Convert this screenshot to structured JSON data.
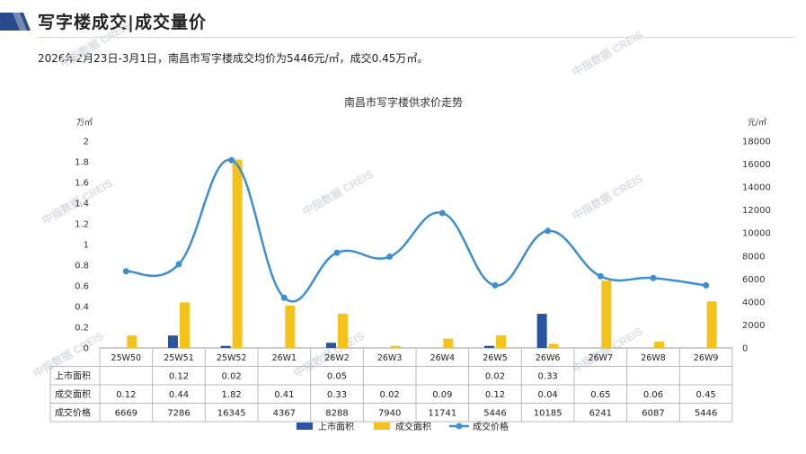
{
  "header": {
    "title": "写字楼成交|成交量价",
    "summary": "2026年2月23日-3月1日，南昌市写字楼成交均价为5446元/㎡，成交0.45万㎡。",
    "accent_color": "#2b4a8b"
  },
  "watermark": "中指数据 CREIS",
  "chart_data": {
    "type": "bar",
    "title": "南昌市写字楼供求价走势",
    "y_left_unit": "万㎡",
    "y_right_unit": "元/㎡",
    "ylim_left": [
      0,
      2
    ],
    "ylim_right": [
      0,
      18000
    ],
    "y_left_ticks": [
      "0",
      "0.2",
      "0.4",
      "0.6",
      "0.8",
      "1",
      "1.2",
      "1.4",
      "1.6",
      "1.8",
      "2"
    ],
    "y_right_ticks": [
      "0",
      "2000",
      "4000",
      "6000",
      "8000",
      "10000",
      "12000",
      "14000",
      "16000",
      "18000"
    ],
    "categories": [
      "25W50",
      "25W51",
      "25W52",
      "26W1",
      "26W2",
      "26W3",
      "26W4",
      "26W5",
      "26W6",
      "26W7",
      "26W8",
      "26W9"
    ],
    "series": [
      {
        "name": "上市面积",
        "type": "bar",
        "axis": "left",
        "color": "#2b54a0",
        "values": [
          null,
          0.12,
          0.02,
          null,
          0.05,
          null,
          null,
          0.02,
          0.33,
          null,
          null,
          null
        ],
        "labels": [
          "",
          "0.12",
          "0.02",
          "",
          "0.05",
          "",
          "",
          "0.02",
          "0.33",
          "",
          "",
          ""
        ]
      },
      {
        "name": "成交面积",
        "type": "bar",
        "axis": "left",
        "color": "#f5c21b",
        "values": [
          0.12,
          0.44,
          1.82,
          0.41,
          0.33,
          0.02,
          0.09,
          0.12,
          0.04,
          0.65,
          0.06,
          0.45
        ],
        "labels": [
          "0.12",
          "0.44",
          "1.82",
          "0.41",
          "0.33",
          "0.02",
          "0.09",
          "0.12",
          "0.04",
          "0.65",
          "0.06",
          "0.45"
        ]
      },
      {
        "name": "成交价格",
        "type": "line",
        "axis": "right",
        "color": "#3d8fd1",
        "values": [
          6669,
          7286,
          16345,
          4367,
          8288,
          7940,
          11741,
          5446,
          10185,
          6241,
          6087,
          5446
        ],
        "labels": [
          "6669",
          "7286",
          "16345",
          "4367",
          "8288",
          "7940",
          "11741",
          "5446",
          "10185",
          "6241",
          "6087",
          "5446"
        ]
      }
    ],
    "legend_position": "bottom",
    "grid": false
  }
}
